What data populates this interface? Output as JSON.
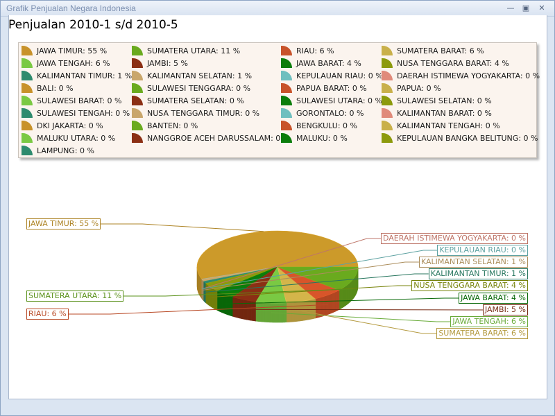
{
  "window": {
    "title": "Grafik Penjualan Negara Indonesia",
    "min_icon": "minimize-icon",
    "max_icon": "maximize-icon",
    "close_icon": "close-icon"
  },
  "header": {
    "title": "Penjualan 2010-1 s/d 2010-5"
  },
  "legend": {
    "columns": [
      [
        {
          "label": "JAWA TIMUR: 55 %",
          "color": "#c8922a"
        },
        {
          "label": "JAWA TENGAH: 6 %",
          "color": "#7ac943"
        },
        {
          "label": "KALIMANTAN TIMUR: 1 %",
          "color": "#2e8b6e"
        },
        {
          "label": "BALI: 0 %",
          "color": "#c8922a"
        },
        {
          "label": "SULAWESI BARAT: 0 %",
          "color": "#7ac943"
        },
        {
          "label": "SULAWESI TENGAH: 0 %",
          "color": "#2e8b6e"
        },
        {
          "label": "DKI JAKARTA: 0 %",
          "color": "#c8922a"
        },
        {
          "label": "MALUKU UTARA: 0 %",
          "color": "#7ac943"
        },
        {
          "label": "LAMPUNG: 0 %",
          "color": "#2e8b6e"
        }
      ],
      [
        {
          "label": "SUMATERA UTARA: 11 %",
          "color": "#6aaa1e"
        },
        {
          "label": "JAMBI: 5 %",
          "color": "#8b2f14"
        },
        {
          "label": "KALIMANTAN SELATAN: 1 %",
          "color": "#c9a66b"
        },
        {
          "label": "SULAWESI TENGGARA: 0 %",
          "color": "#6aaa1e"
        },
        {
          "label": "SUMATERA SELATAN: 0 %",
          "color": "#8b2f14"
        },
        {
          "label": "NUSA TENGGARA TIMUR: 0 %",
          "color": "#c9a66b"
        },
        {
          "label": "BANTEN: 0 %",
          "color": "#6aaa1e"
        },
        {
          "label": "NANGGROE ACEH DARUSSALAM: 0 %",
          "color": "#8b2f14"
        }
      ],
      [
        {
          "label": "RIAU: 6 %",
          "color": "#c8532a"
        },
        {
          "label": "JAWA BARAT: 4 %",
          "color": "#0b7d0b"
        },
        {
          "label": "KEPULAUAN RIAU: 0 %",
          "color": "#6fbfbf"
        },
        {
          "label": "PAPUA BARAT: 0 %",
          "color": "#c8532a"
        },
        {
          "label": "SULAWESI UTARA: 0 %",
          "color": "#0b7d0b"
        },
        {
          "label": "GORONTALO: 0 %",
          "color": "#6fbfbf"
        },
        {
          "label": "BENGKULU: 0 %",
          "color": "#c8532a"
        },
        {
          "label": "MALUKU: 0 %",
          "color": "#0b7d0b"
        }
      ],
      [
        {
          "label": "SUMATERA BARAT: 6 %",
          "color": "#c9b04a"
        },
        {
          "label": "NUSA TENGGARA BARAT: 4 %",
          "color": "#8c9a0c"
        },
        {
          "label": "DAERAH ISTIMEWA YOGYAKARTA: 0 %",
          "color": "#e08a7a"
        },
        {
          "label": "PAPUA: 0 %",
          "color": "#c9b04a"
        },
        {
          "label": "SULAWESI SELATAN: 0 %",
          "color": "#8c9a0c"
        },
        {
          "label": "KALIMANTAN BARAT: 0 %",
          "color": "#e08a7a"
        },
        {
          "label": "KALIMANTAN TENGAH: 0 %",
          "color": "#c9b04a"
        },
        {
          "label": "KEPULAUAN BANGKA BELITUNG: 0 %",
          "color": "#8c9a0c"
        }
      ]
    ]
  },
  "chart_data": {
    "type": "pie",
    "slices": [
      {
        "name": "JAWA TIMUR",
        "value": 55,
        "label": "JAWA TIMUR: 55 %",
        "color": "#cc9a2a",
        "side": "left"
      },
      {
        "name": "DAERAH ISTIMEWA YOGYAKARTA",
        "value": 0,
        "label": "DAERAH ISTIMEWA YOGYAKARTA: 0 %",
        "color": "#e08a7a",
        "side": "right"
      },
      {
        "name": "KEPULAUAN RIAU",
        "value": 0,
        "label": "KEPULAUAN RIAU: 0 %",
        "color": "#6fbfbf",
        "side": "right"
      },
      {
        "name": "KALIMANTAN SELATAN",
        "value": 1,
        "label": "KALIMANTAN SELATAN: 1 %",
        "color": "#c9a66b",
        "side": "right"
      },
      {
        "name": "KALIMANTAN TIMUR",
        "value": 1,
        "label": "KALIMANTAN TIMUR: 1 %",
        "color": "#2e8b6e",
        "side": "right"
      },
      {
        "name": "NUSA TENGGARA BARAT",
        "value": 4,
        "label": "NUSA TENGGARA BARAT: 4 %",
        "color": "#8c9a0c",
        "side": "right"
      },
      {
        "name": "JAWA BARAT",
        "value": 4,
        "label": "JAWA BARAT: 4 %",
        "color": "#0b7d0b",
        "side": "right"
      },
      {
        "name": "JAMBI",
        "value": 5,
        "label": "JAMBI: 5 %",
        "color": "#8b2f14",
        "side": "right"
      },
      {
        "name": "JAWA TENGAH",
        "value": 6,
        "label": "JAWA TENGAH: 6 %",
        "color": "#7ac943",
        "side": "right"
      },
      {
        "name": "SUMATERA BARAT",
        "value": 6,
        "label": "SUMATERA BARAT: 6 %",
        "color": "#d4b54a",
        "side": "right"
      },
      {
        "name": "RIAU",
        "value": 6,
        "label": "RIAU: 6 %",
        "color": "#d8552a",
        "side": "left"
      },
      {
        "name": "SUMATERA UTARA",
        "value": 11,
        "label": "SUMATERA UTARA: 11 %",
        "color": "#6aaa1e",
        "side": "left"
      }
    ]
  }
}
